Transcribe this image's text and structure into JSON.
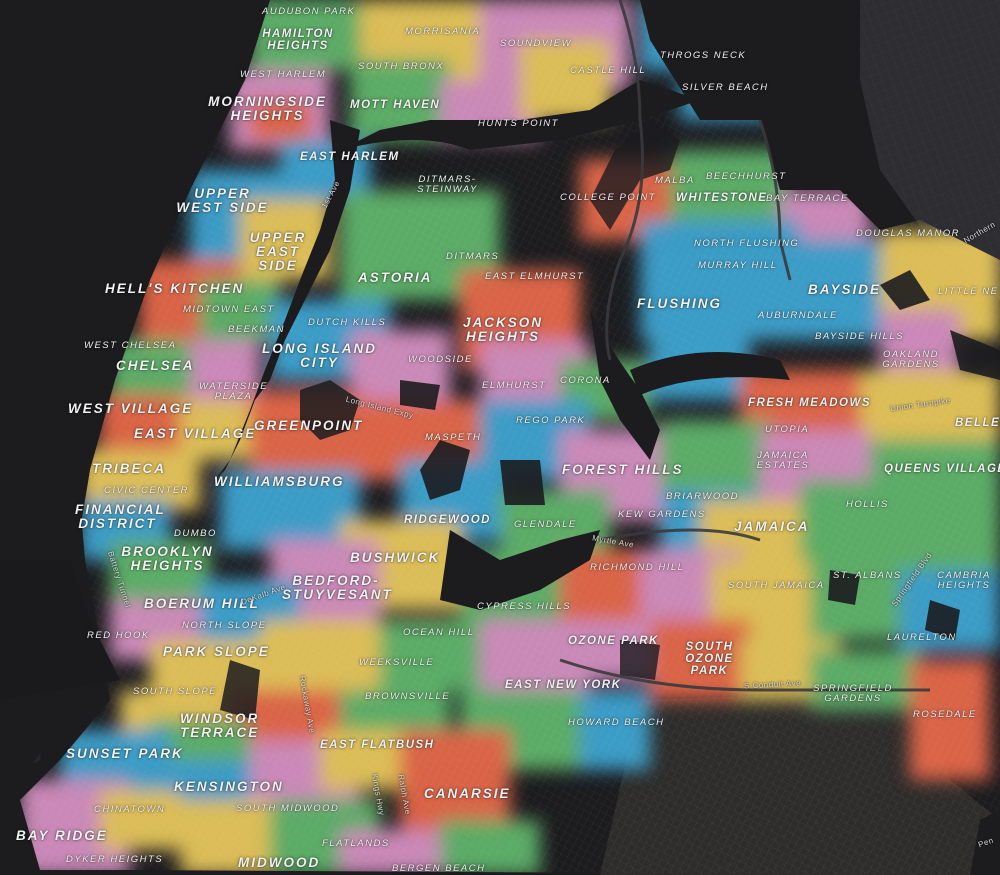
{
  "map": {
    "colors": {
      "background": "#1c1c1f",
      "water": "#141416",
      "land_other": "#2c2c2f",
      "orange": "#e4674a",
      "green": "#5eb36b",
      "blue": "#3ea3cf",
      "pink": "#d38fc0",
      "yellow": "#e6c65a",
      "label": "#f2f2f2"
    },
    "neighborhoods": [
      {
        "id": "audubon-park",
        "name": "AUDUBON PARK"
      },
      {
        "id": "hamilton-heights",
        "name": "HAMILTON HEIGHTS"
      },
      {
        "id": "west-harlem",
        "name": "WEST HARLEM"
      },
      {
        "id": "morningside-heights",
        "name": "MORNINGSIDE HEIGHTS"
      },
      {
        "id": "morrisania",
        "name": "MORRISANIA"
      },
      {
        "id": "soundview",
        "name": "SOUNDVIEW"
      },
      {
        "id": "south-bronx",
        "name": "SOUTH BRONX"
      },
      {
        "id": "castle-hill",
        "name": "CASTLE HILL"
      },
      {
        "id": "throgs-neck",
        "name": "THROGS NECK"
      },
      {
        "id": "silver-beach",
        "name": "SILVER BEACH"
      },
      {
        "id": "mott-haven",
        "name": "MOTT HAVEN"
      },
      {
        "id": "hunts-point",
        "name": "HUNTS POINT"
      },
      {
        "id": "east-harlem",
        "name": "EAST HARLEM"
      },
      {
        "id": "upper-west-side",
        "name": "UPPER WEST SIDE"
      },
      {
        "id": "upper-east-side",
        "name": "UPPER EAST SIDE"
      },
      {
        "id": "ditmars-steinway",
        "name": "DITMARS-STEINWAY"
      },
      {
        "id": "college-point",
        "name": "COLLEGE POINT"
      },
      {
        "id": "malba",
        "name": "MALBA"
      },
      {
        "id": "beechhurst",
        "name": "BEECHHURST"
      },
      {
        "id": "whitestone",
        "name": "WHITESTONE"
      },
      {
        "id": "bay-terrace",
        "name": "BAY TERRACE"
      },
      {
        "id": "douglas-manor",
        "name": "DOUGLAS MANOR"
      },
      {
        "id": "ditmars",
        "name": "DITMARS"
      },
      {
        "id": "north-flushing",
        "name": "NORTH FLUSHING"
      },
      {
        "id": "astoria",
        "name": "ASTORIA"
      },
      {
        "id": "east-elmhurst",
        "name": "EAST ELMHURST"
      },
      {
        "id": "murray-hill",
        "name": "MURRAY HILL"
      },
      {
        "id": "little-neck",
        "name": "LITTLE NE"
      },
      {
        "id": "hells-kitchen",
        "name": "HELL'S KITCHEN"
      },
      {
        "id": "flushing",
        "name": "FLUSHING"
      },
      {
        "id": "bayside",
        "name": "BAYSIDE"
      },
      {
        "id": "midtown-east",
        "name": "MIDTOWN EAST"
      },
      {
        "id": "dutch-kills",
        "name": "DUTCH KILLS"
      },
      {
        "id": "jackson-heights",
        "name": "JACKSON HEIGHTS"
      },
      {
        "id": "auburndale",
        "name": "AUBURNDALE"
      },
      {
        "id": "beekman",
        "name": "BEEKMAN"
      },
      {
        "id": "west-chelsea",
        "name": "WEST CHELSEA"
      },
      {
        "id": "long-island-city",
        "name": "LONG ISLAND CITY"
      },
      {
        "id": "bayside-hills",
        "name": "BAYSIDE HILLS"
      },
      {
        "id": "oakland-gardens",
        "name": "OAKLAND GARDENS"
      },
      {
        "id": "chelsea",
        "name": "CHELSEA"
      },
      {
        "id": "woodside",
        "name": "WOODSIDE"
      },
      {
        "id": "elmhurst",
        "name": "ELMHURST"
      },
      {
        "id": "corona",
        "name": "CORONA"
      },
      {
        "id": "waterside-plaza",
        "name": "WATERSIDE PLAZA"
      },
      {
        "id": "west-village",
        "name": "WEST VILLAGE"
      },
      {
        "id": "fresh-meadows",
        "name": "FRESH MEADOWS"
      },
      {
        "id": "greenpoint",
        "name": "GREENPOINT"
      },
      {
        "id": "rego-park",
        "name": "REGO PARK"
      },
      {
        "id": "maspeth",
        "name": "MASPETH"
      },
      {
        "id": "utopia",
        "name": "UTOPIA"
      },
      {
        "id": "beller",
        "name": "BELLER"
      },
      {
        "id": "east-village",
        "name": "EAST VILLAGE"
      },
      {
        "id": "jamaica-estates",
        "name": "JAMAICA ESTATES"
      },
      {
        "id": "tribeca",
        "name": "TRIBECA"
      },
      {
        "id": "forest-hills",
        "name": "FOREST HILLS"
      },
      {
        "id": "queens-village",
        "name": "QUEENS VILLAGE"
      },
      {
        "id": "williamsburg",
        "name": "WILLIAMSBURG"
      },
      {
        "id": "civic-center",
        "name": "CIVIC CENTER"
      },
      {
        "id": "briarwood",
        "name": "BRIARWOOD"
      },
      {
        "id": "hollis",
        "name": "HOLLIS"
      },
      {
        "id": "financial-district",
        "name": "FINANCIAL DISTRICT"
      },
      {
        "id": "kew-gardens",
        "name": "KEW GARDENS"
      },
      {
        "id": "ridgewood",
        "name": "RIDGEWOOD"
      },
      {
        "id": "glendale",
        "name": "GLENDALE"
      },
      {
        "id": "dumbo",
        "name": "DUMBO"
      },
      {
        "id": "jamaica",
        "name": "JAMAICA"
      },
      {
        "id": "brooklyn-heights",
        "name": "BROOKLYN HEIGHTS"
      },
      {
        "id": "bushwick",
        "name": "BUSHWICK"
      },
      {
        "id": "richmond-hill",
        "name": "RICHMOND HILL"
      },
      {
        "id": "bedford-stuyvesant",
        "name": "BEDFORD-STUYVESANT"
      },
      {
        "id": "south-jamaica",
        "name": "SOUTH JAMAICA"
      },
      {
        "id": "st-albans",
        "name": "ST. ALBANS"
      },
      {
        "id": "cambria-heights",
        "name": "CAMBRIA HEIGHTS"
      },
      {
        "id": "boerum-hill",
        "name": "BOERUM HILL"
      },
      {
        "id": "cypress-hills",
        "name": "CYPRESS HILLS"
      },
      {
        "id": "red-hook",
        "name": "RED HOOK"
      },
      {
        "id": "north-slope",
        "name": "NORTH SLOPE"
      },
      {
        "id": "ocean-hill",
        "name": "OCEAN HILL"
      },
      {
        "id": "ozone-park",
        "name": "OZONE PARK"
      },
      {
        "id": "laurelton",
        "name": "LAURELTON"
      },
      {
        "id": "south-ozone-park",
        "name": "SOUTH OZONE PARK"
      },
      {
        "id": "park-slope",
        "name": "PARK SLOPE"
      },
      {
        "id": "weeksville",
        "name": "WEEKSVILLE"
      },
      {
        "id": "east-new-york",
        "name": "EAST NEW YORK"
      },
      {
        "id": "springfield-gardens",
        "name": "SPRINGFIELD GARDENS"
      },
      {
        "id": "south-slope",
        "name": "SOUTH SLOPE"
      },
      {
        "id": "brownsville",
        "name": "BROWNSVILLE"
      },
      {
        "id": "rosedale",
        "name": "ROSEDALE"
      },
      {
        "id": "windsor-terrace",
        "name": "WINDSOR TERRACE"
      },
      {
        "id": "howard-beach",
        "name": "HOWARD BEACH"
      },
      {
        "id": "east-flatbush",
        "name": "EAST FLATBUSH"
      },
      {
        "id": "sunset-park",
        "name": "SUNSET PARK"
      },
      {
        "id": "kensington",
        "name": "KENSINGTON"
      },
      {
        "id": "canarsie",
        "name": "CANARSIE"
      },
      {
        "id": "chinatown",
        "name": "CHINATOWN"
      },
      {
        "id": "south-midwood",
        "name": "SOUTH MIDWOOD"
      },
      {
        "id": "bay-ridge",
        "name": "BAY RIDGE"
      },
      {
        "id": "flatlands",
        "name": "FLATLANDS"
      },
      {
        "id": "dyker-heights",
        "name": "DYKER HEIGHTS"
      },
      {
        "id": "midwood",
        "name": "MIDWOOD"
      },
      {
        "id": "bergen-beach",
        "name": "BERGEN BEACH"
      }
    ],
    "roads": [
      {
        "id": "1st-ave",
        "name": "1st Ave"
      },
      {
        "id": "long-island-expy",
        "name": "Long Island Expy"
      },
      {
        "id": "union-turnpike",
        "name": "Union Turnpike"
      },
      {
        "id": "myrtle-ave",
        "name": "Myrtle Ave"
      },
      {
        "id": "dekalb-ave",
        "name": "DeKalb Ave"
      },
      {
        "id": "battery-tunnel",
        "name": "Battery Tunnel"
      },
      {
        "id": "springfield-blvd",
        "name": "Springfield Blvd"
      },
      {
        "id": "s-conduit-ave",
        "name": "S Conduit Ave"
      },
      {
        "id": "rockaway-ave",
        "name": "Rockaway Ave"
      },
      {
        "id": "kings-hwy",
        "name": "Kings Hwy"
      },
      {
        "id": "ralph-ave",
        "name": "Ralph Ave"
      },
      {
        "id": "northern-blvd",
        "name": "Northern"
      },
      {
        "id": "pen-label",
        "name": "Pen"
      }
    ]
  }
}
